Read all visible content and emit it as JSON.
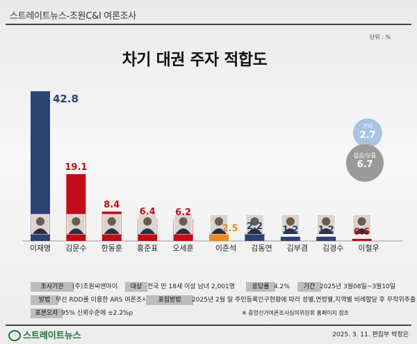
{
  "header": {
    "source": "스트레이트뉴스-조원C&I 여론조사"
  },
  "unit": "단위 : %",
  "title": "차기 대권 주자  적합도",
  "chart_data": {
    "type": "bar",
    "title": "차기 대권 주자  적합도",
    "unit": "%",
    "categories": [
      "이재명",
      "김문수",
      "한동훈",
      "홍준표",
      "오세훈",
      "이준석",
      "김동연",
      "김부겸",
      "김경수",
      "이철우"
    ],
    "values": [
      42.8,
      19.1,
      8.4,
      6.4,
      6.2,
      2.5,
      2.2,
      1.2,
      1.2,
      0.6
    ],
    "value_labels": [
      "42.8",
      "19.1",
      "8.4",
      "6.4",
      "6.2",
      "2.5",
      "2.2",
      "1.2",
      "1.2",
      "0.6"
    ],
    "bar_colors": [
      "#2b4275",
      "#c00d17",
      "#c00d17",
      "#c00d17",
      "#c00d17",
      "#e98a23",
      "#2b4275",
      "#2b4275",
      "#2b4275",
      "#c00d17"
    ],
    "label_colors": [
      "#2b4275",
      "#c00d17",
      "#c00d17",
      "#c00d17",
      "#c00d17",
      "#e98a23",
      "#2b4275",
      "#2b4275",
      "#2b4275",
      "#c00d17"
    ],
    "ylim": [
      0,
      45
    ],
    "grid": false,
    "legend": "none",
    "extra": [
      {
        "label": "기타",
        "value": "2.7"
      },
      {
        "label": "없음/모름",
        "value": "6.7"
      }
    ]
  },
  "info": {
    "row1": {
      "org_label": "조사기관",
      "org": "(주)조원씨앤아이",
      "target_label": "대상",
      "target": "전국 만 18세 이상 남녀 2,001명",
      "rate_label": "응답률",
      "rate": "4.2%",
      "period_label": "기간",
      "period": "2025년 3월08일~3월10일"
    },
    "row2": {
      "method_label": "방법",
      "method": "무선 RDD를 이용한 ARS 여론조사",
      "sample_label": "표집방법",
      "sample": "2025년 2월 말 주민등록인구현황에 따라 성별,연령별,지역별 비례할당 후 무작위추출"
    },
    "row3": {
      "error_label": "표본오차",
      "error": "95% 신뢰수준에 ±2.2%p",
      "note": "※ 중앙선거여론조사심의위원회 홈페이지 참조"
    }
  },
  "footer": {
    "logo": "스트레이트뉴스",
    "credit": "2025. 3. 11. 편집부 박정은"
  }
}
